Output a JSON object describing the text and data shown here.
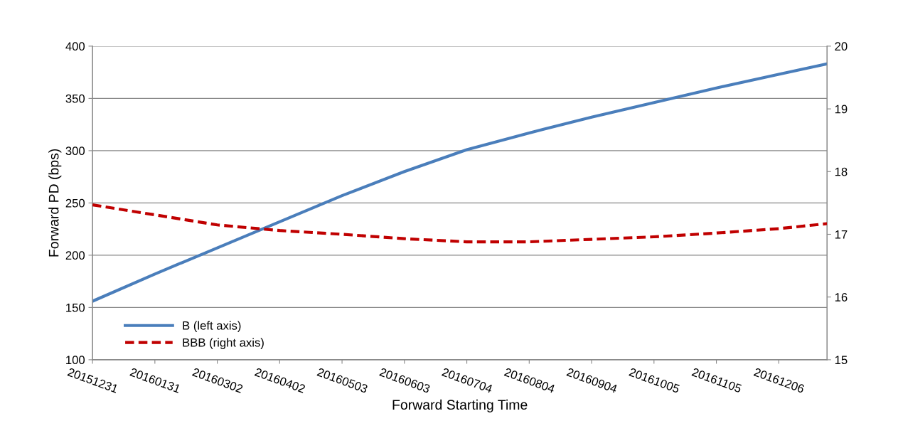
{
  "chart_data": {
    "type": "line",
    "xlabel": "Forward Starting Time",
    "ylabel": "Forward PD (bps)",
    "x": [
      "2015-12-31",
      "2016-01-31",
      "2016-03-02",
      "2016-04-02",
      "2016-05-03",
      "2016-06-03",
      "2016-07-04",
      "2016-08-04",
      "2016-09-04",
      "2016-10-05",
      "2016-11-05",
      "2016-12-06",
      "2016-12-30"
    ],
    "series": [
      {
        "name": "B (left axis)",
        "color": "#4a7ebb",
        "line_style": "solid",
        "values": [
          156,
          182,
          207,
          232,
          257,
          280,
          301,
          317,
          332,
          346,
          360,
          373,
          383
        ]
      },
      {
        "name": "BBB (right axis)",
        "color": "#c00000",
        "line_style": "dashed",
        "axis": "y2",
        "values": [
          17.47,
          17.31,
          17.15,
          17.06,
          17.0,
          16.93,
          16.88,
          16.88,
          16.92,
          16.96,
          17.02,
          17.09,
          17.17
        ]
      }
    ],
    "xlim": [
      "2015-12-31",
      "2016-12-30"
    ],
    "xticks": [
      {
        "value": "2015-12-31",
        "label": "20151231"
      },
      {
        "value": "2016-01-31",
        "label": "20160131"
      },
      {
        "value": "2016-03-02",
        "label": "20160302"
      },
      {
        "value": "2016-04-02",
        "label": "20160402"
      },
      {
        "value": "2016-05-03",
        "label": "20160503"
      },
      {
        "value": "2016-06-03",
        "label": "20160603"
      },
      {
        "value": "2016-07-04",
        "label": "20160704"
      },
      {
        "value": "2016-08-04",
        "label": "20160804"
      },
      {
        "value": "2016-09-04",
        "label": "20160904"
      },
      {
        "value": "2016-10-05",
        "label": "20161005"
      },
      {
        "value": "2016-11-05",
        "label": "20161105"
      },
      {
        "value": "2016-12-06",
        "label": "20161206"
      }
    ],
    "ylim": [
      100,
      400
    ],
    "yticks": [
      100,
      150,
      200,
      250,
      300,
      350,
      400
    ],
    "y2lim": [
      15,
      20
    ],
    "y2ticks": [
      15,
      16,
      17,
      18,
      19,
      20
    ],
    "grid": "y",
    "legend": "bottom left",
    "marker": "none"
  }
}
